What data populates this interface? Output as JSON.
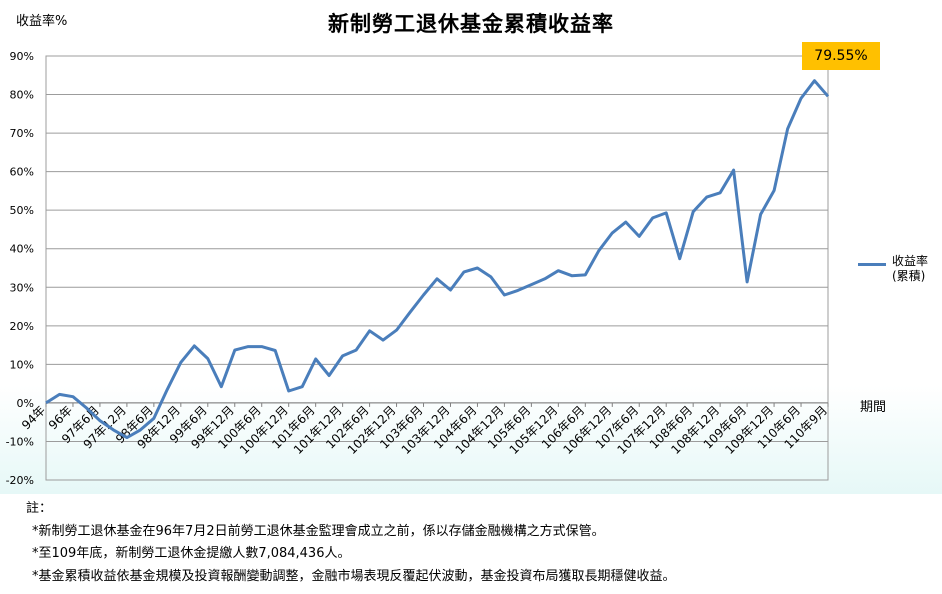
{
  "chart_data": {
    "type": "line",
    "title": "新制勞工退休基金累積收益率",
    "ylabel": "收益率%",
    "xlabel": "期間",
    "ylim": [
      -20,
      90
    ],
    "yticks": [
      -20,
      -10,
      0,
      10,
      20,
      30,
      40,
      50,
      60,
      70,
      80,
      90
    ],
    "ytick_labels": [
      "-20%",
      "-10%",
      "0%",
      "10%",
      "20%",
      "30%",
      "40%",
      "50%",
      "60%",
      "70%",
      "80%",
      "90%"
    ],
    "x_tick_labels": [
      "94年",
      "96年",
      "97年6月",
      "97年12月",
      "98年6月",
      "98年12月",
      "99年6月",
      "99年12月",
      "100年6月",
      "100年12月",
      "101年6月",
      "101年12月",
      "102年6月",
      "102年12月",
      "103年6月",
      "103年12月",
      "104年6月",
      "104年12月",
      "105年6月",
      "105年12月",
      "106年6月",
      "106年12月",
      "107年6月",
      "107年12月",
      "108年6月",
      "108年12月",
      "109年6月",
      "109年12月",
      "110年6月",
      "110年9月"
    ],
    "grid": true,
    "legend_position": "right",
    "series": [
      {
        "name": "收益率(累積)",
        "color": "#4a7ebb",
        "values": [
          0,
          2.2,
          1.6,
          -1.3,
          -4.6,
          -7.0,
          -9.0,
          -7.0,
          -4.0,
          3.5,
          10.5,
          14.8,
          11.5,
          4.2,
          13.7,
          14.6,
          14.6,
          13.6,
          3.1,
          4.2,
          11.4,
          7.1,
          12.2,
          13.7,
          18.7,
          16.3,
          18.9,
          23.5,
          28.0,
          32.2,
          29.3,
          34.0,
          35.0,
          32.7,
          28.0,
          29.2,
          30.7,
          32.2,
          34.3,
          33.0,
          33.2,
          39.5,
          44.1,
          46.9,
          43.2,
          48.0,
          49.3,
          37.4,
          49.6,
          53.4,
          54.5,
          60.4,
          31.4,
          48.9,
          55.1,
          71.1,
          79.0,
          83.6,
          79.55
        ]
      }
    ],
    "annotation": "79.55%"
  },
  "legend": {
    "line1": "收益率",
    "line2": "(累積)"
  },
  "notes": {
    "head": "註：",
    "items": [
      "*新制勞工退休基金在96年7月2日前勞工退休基金監理會成立之前，係以存儲金融機構之方式保管。",
      "*至109年底，新制勞工退休金提繳人數7,084,436人。",
      "*基金累積收益依基金規模及投資報酬變動調整，金融市場表現反覆起伏波動，基金投資布局獲取長期穩健收益。"
    ]
  }
}
